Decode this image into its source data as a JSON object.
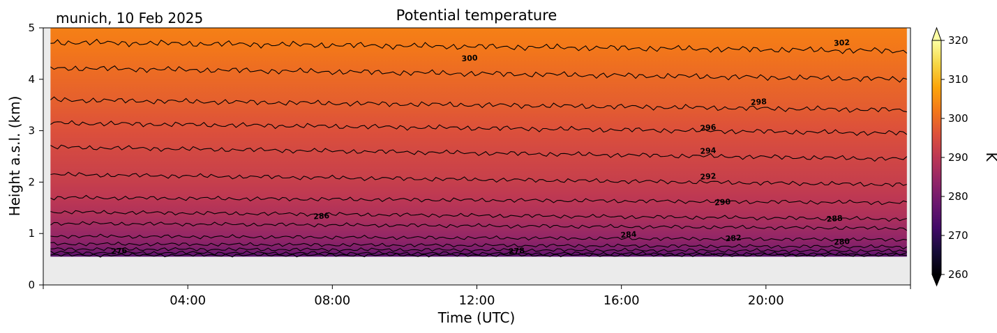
{
  "chart_data": {
    "type": "heatmap",
    "title": "Potential temperature",
    "subtitle": "munich, 10 Feb 2025",
    "xlabel": "Time (UTC)",
    "ylabel": "Height a.s.l. (km)",
    "xlim": [
      0,
      24
    ],
    "ylim": [
      0,
      5
    ],
    "data_extent": {
      "t_start": 0.2,
      "t_end": 23.9,
      "z_bottom": 0.55,
      "z_top": 5.0
    },
    "x_ticks": [
      {
        "value": 4,
        "label": "04:00"
      },
      {
        "value": 8,
        "label": "08:00"
      },
      {
        "value": 12,
        "label": "12:00"
      },
      {
        "value": 16,
        "label": "16:00"
      },
      {
        "value": 20,
        "label": "20:00"
      }
    ],
    "y_ticks": [
      {
        "value": 0,
        "label": "0"
      },
      {
        "value": 1,
        "label": "1"
      },
      {
        "value": 2,
        "label": "2"
      },
      {
        "value": 3,
        "label": "3"
      },
      {
        "value": 4,
        "label": "4"
      },
      {
        "value": 5,
        "label": "5"
      }
    ],
    "colorbar": {
      "label": "K",
      "colormap": "inferno",
      "range": [
        260,
        320
      ],
      "extend": "both",
      "ticks": [
        {
          "value": 260,
          "label": "260"
        },
        {
          "value": 270,
          "label": "270"
        },
        {
          "value": 280,
          "label": "280"
        },
        {
          "value": 290,
          "label": "290"
        },
        {
          "value": 300,
          "label": "300"
        },
        {
          "value": 310,
          "label": "310"
        },
        {
          "value": 320,
          "label": "320"
        }
      ]
    },
    "isolines": [
      {
        "theta": 276,
        "height_start_km": 0.58,
        "height_end_km": 0.58
      },
      {
        "theta": 278,
        "height_start_km": 0.63,
        "height_end_km": 0.6
      },
      {
        "theta": 280,
        "height_start_km": 0.7,
        "height_end_km": 0.66
      },
      {
        "theta": 282,
        "height_start_km": 0.8,
        "height_end_km": 0.74
      },
      {
        "theta": 284,
        "height_start_km": 0.95,
        "height_end_km": 0.88
      },
      {
        "theta": 286,
        "height_start_km": 1.2,
        "height_end_km": 1.1
      },
      {
        "theta": 288,
        "height_start_km": 1.42,
        "height_end_km": 1.28
      },
      {
        "theta": 290,
        "height_start_km": 1.7,
        "height_end_km": 1.6
      },
      {
        "theta": 292,
        "height_start_km": 2.15,
        "height_end_km": 1.95
      },
      {
        "theta": 294,
        "height_start_km": 2.68,
        "height_end_km": 2.45
      },
      {
        "theta": 296,
        "height_start_km": 3.15,
        "height_end_km": 2.95
      },
      {
        "theta": 298,
        "height_start_km": 3.6,
        "height_end_km": 3.4
      },
      {
        "theta": 300,
        "height_start_km": 4.22,
        "height_end_km": 4.0
      },
      {
        "theta": 302,
        "height_start_km": 4.72,
        "height_end_km": 4.55
      }
    ],
    "contour_labels": [
      {
        "text": "276",
        "time": 2.1,
        "height": 0.65
      },
      {
        "text": "278",
        "time": 13.1,
        "height": 0.65
      },
      {
        "text": "280",
        "time": 22.1,
        "height": 0.83
      },
      {
        "text": "282",
        "time": 19.1,
        "height": 0.9
      },
      {
        "text": "284",
        "time": 16.2,
        "height": 0.97
      },
      {
        "text": "286",
        "time": 7.7,
        "height": 1.33
      },
      {
        "text": "288",
        "time": 21.9,
        "height": 1.28
      },
      {
        "text": "290",
        "time": 18.8,
        "height": 1.6
      },
      {
        "text": "292",
        "time": 18.4,
        "height": 2.1
      },
      {
        "text": "294",
        "time": 18.4,
        "height": 2.6
      },
      {
        "text": "296",
        "time": 18.4,
        "height": 3.05
      },
      {
        "text": "298",
        "time": 19.8,
        "height": 3.55
      },
      {
        "text": "300",
        "time": 11.8,
        "height": 4.4
      },
      {
        "text": "302",
        "time": 22.1,
        "height": 4.7
      }
    ],
    "background_color": "#ebebeb",
    "isoline_color": "#000000"
  }
}
